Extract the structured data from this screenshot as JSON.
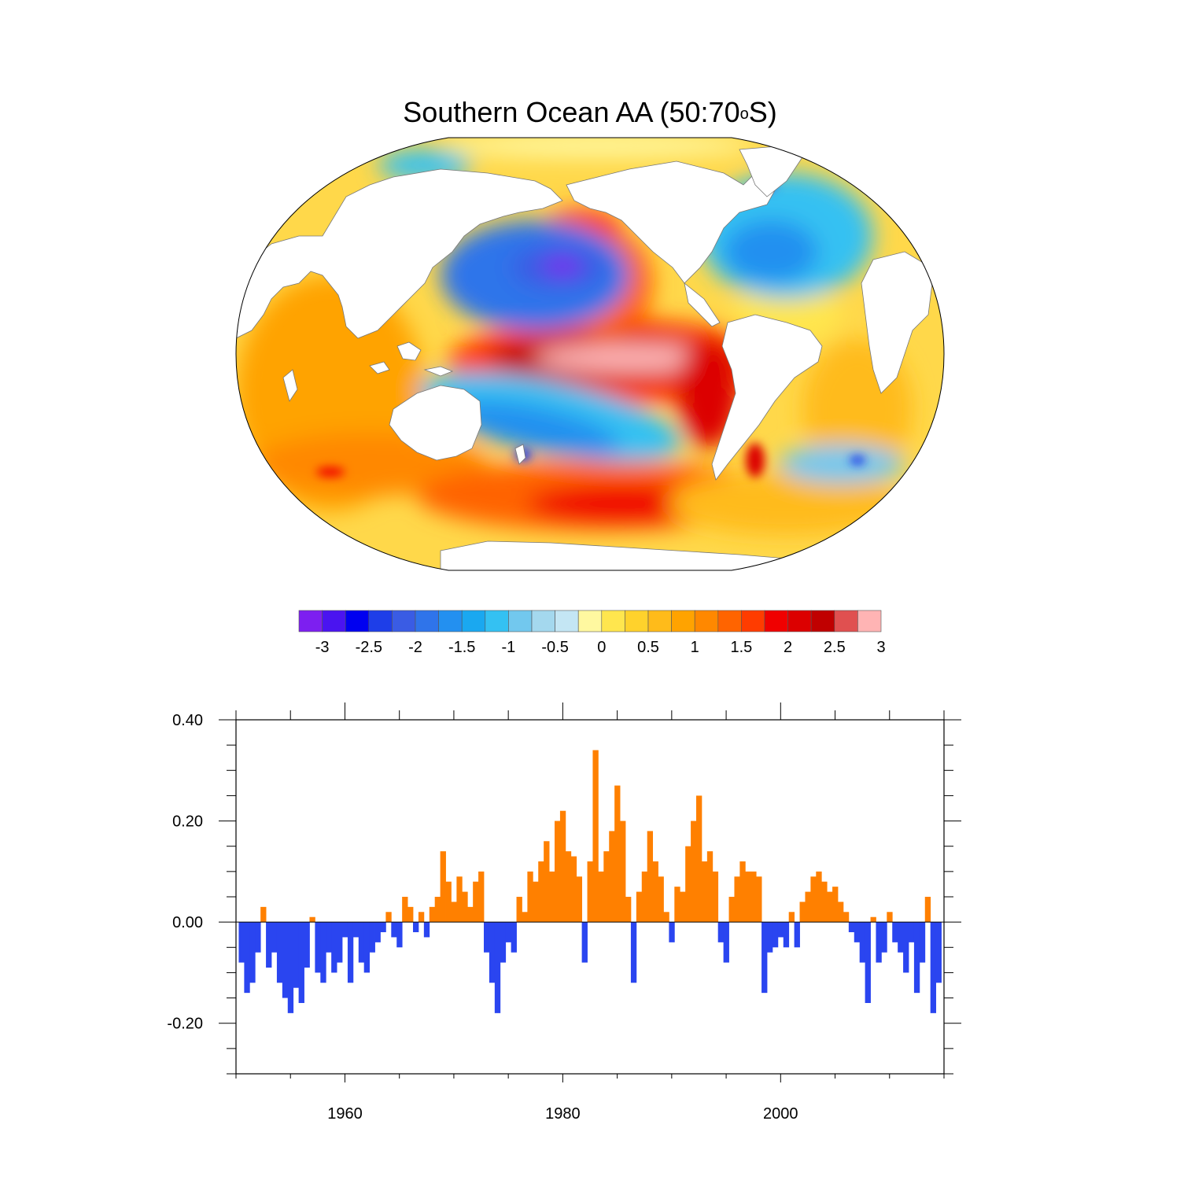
{
  "title_main": "Southern Ocean AA (50:70",
  "title_deg": "o",
  "title_end": "S)",
  "colorbar": {
    "colors": [
      "#7d1ff0",
      "#4a14f0",
      "#0000f0",
      "#1e3ee8",
      "#3a5ce4",
      "#2f74ea",
      "#2390f0",
      "#1aa8f0",
      "#34c1f2",
      "#72c8ee",
      "#a4d8ee",
      "#c4e6f4",
      "#fff8a0",
      "#ffe64e",
      "#ffd22c",
      "#ffbb1a",
      "#ffa300",
      "#ff8800",
      "#ff6400",
      "#ff3c00",
      "#f00000",
      "#dc0000",
      "#c00000",
      "#e05050",
      "#ffb4b4"
    ],
    "labels": [
      "-3",
      "-2.5",
      "-2",
      "-1.5",
      "-1",
      "-0.5",
      "0",
      "0.5",
      "1",
      "1.5",
      "2",
      "2.5",
      "3"
    ]
  },
  "map": {
    "pattern": "El Nino-like regression: warm equatorial/eastern Pacific, cold North Pacific and subtropical South Pacific",
    "warm_color": "#ff8000",
    "cold_color": "#2f6fe8"
  },
  "chart_data": {
    "type": "bar",
    "xlim": [
      1950,
      2015
    ],
    "ylim": [
      -0.3,
      0.4
    ],
    "yticks": [
      "0.40",
      "0.20",
      "0.00",
      "-0.20"
    ],
    "ytick_values": [
      0.4,
      0.2,
      0.0,
      -0.2
    ],
    "xticks": [
      "1960",
      "1980",
      "2000"
    ],
    "xtick_values": [
      1960,
      1980,
      2000
    ],
    "positive_color": "#ff8000",
    "negative_color": "#2a45f0",
    "x": [
      1950.5,
      1951.0,
      1951.5,
      1952.0,
      1952.5,
      1953.0,
      1953.5,
      1954.0,
      1954.5,
      1955.0,
      1955.5,
      1956.0,
      1956.5,
      1957.0,
      1957.5,
      1958.0,
      1958.5,
      1959.0,
      1959.5,
      1960.0,
      1960.5,
      1961.0,
      1961.5,
      1962.0,
      1962.5,
      1963.0,
      1963.5,
      1964.0,
      1964.5,
      1965.0,
      1965.5,
      1966.0,
      1966.5,
      1967.0,
      1967.5,
      1968.0,
      1968.5,
      1969.0,
      1969.5,
      1970.0,
      1970.5,
      1971.0,
      1971.5,
      1972.0,
      1972.5,
      1973.0,
      1973.5,
      1974.0,
      1974.5,
      1975.0,
      1975.5,
      1976.0,
      1976.5,
      1977.0,
      1977.5,
      1978.0,
      1978.5,
      1979.0,
      1979.5,
      1980.0,
      1980.5,
      1981.0,
      1981.5,
      1982.0,
      1982.5,
      1983.0,
      1983.5,
      1984.0,
      1984.5,
      1985.0,
      1985.5,
      1986.0,
      1986.5,
      1987.0,
      1987.5,
      1988.0,
      1988.5,
      1989.0,
      1989.5,
      1990.0,
      1990.5,
      1991.0,
      1991.5,
      1992.0,
      1992.5,
      1993.0,
      1993.5,
      1994.0,
      1994.5,
      1995.0,
      1995.5,
      1996.0,
      1996.5,
      1997.0,
      1997.5,
      1998.0,
      1998.5,
      1999.0,
      1999.5,
      2000.0,
      2000.5,
      2001.0,
      2001.5,
      2002.0,
      2002.5,
      2003.0,
      2003.5,
      2004.0,
      2004.5,
      2005.0,
      2005.5,
      2006.0,
      2006.5,
      2007.0,
      2007.5,
      2008.0,
      2008.5,
      2009.0,
      2009.5,
      2010.0,
      2010.5,
      2011.0,
      2011.5,
      2012.0,
      2012.5,
      2013.0,
      2013.5,
      2014.0,
      2014.5
    ],
    "values": [
      -0.08,
      -0.14,
      -0.12,
      -0.06,
      0.03,
      -0.09,
      -0.06,
      -0.12,
      -0.15,
      -0.18,
      -0.13,
      -0.16,
      -0.09,
      0.01,
      -0.1,
      -0.12,
      -0.06,
      -0.1,
      -0.08,
      -0.03,
      -0.12,
      -0.03,
      -0.08,
      -0.1,
      -0.06,
      -0.04,
      -0.02,
      0.02,
      -0.03,
      -0.05,
      0.05,
      0.03,
      -0.02,
      0.02,
      -0.03,
      0.03,
      0.05,
      0.14,
      0.08,
      0.04,
      0.09,
      0.06,
      0.03,
      0.08,
      0.1,
      -0.06,
      -0.12,
      -0.18,
      -0.08,
      -0.04,
      -0.06,
      0.05,
      0.02,
      0.1,
      0.08,
      0.12,
      0.16,
      0.1,
      0.2,
      0.22,
      0.14,
      0.13,
      0.09,
      -0.08,
      0.12,
      0.34,
      0.1,
      0.14,
      0.18,
      0.27,
      0.2,
      0.05,
      -0.12,
      0.06,
      0.1,
      0.18,
      0.12,
      0.09,
      0.02,
      -0.04,
      0.07,
      0.06,
      0.15,
      0.2,
      0.25,
      0.12,
      0.14,
      0.1,
      -0.04,
      -0.08,
      0.05,
      0.09,
      0.12,
      0.1,
      0.1,
      0.09,
      -0.14,
      -0.06,
      -0.05,
      -0.03,
      -0.05,
      0.02,
      -0.05,
      0.04,
      0.06,
      0.09,
      0.1,
      0.08,
      0.06,
      0.07,
      0.04,
      0.02,
      -0.02,
      -0.04,
      -0.08,
      -0.16,
      0.01,
      -0.08,
      -0.06,
      0.02,
      -0.04,
      -0.06,
      -0.1,
      -0.04,
      -0.14,
      -0.08,
      0.05,
      -0.18,
      -0.12
    ]
  }
}
